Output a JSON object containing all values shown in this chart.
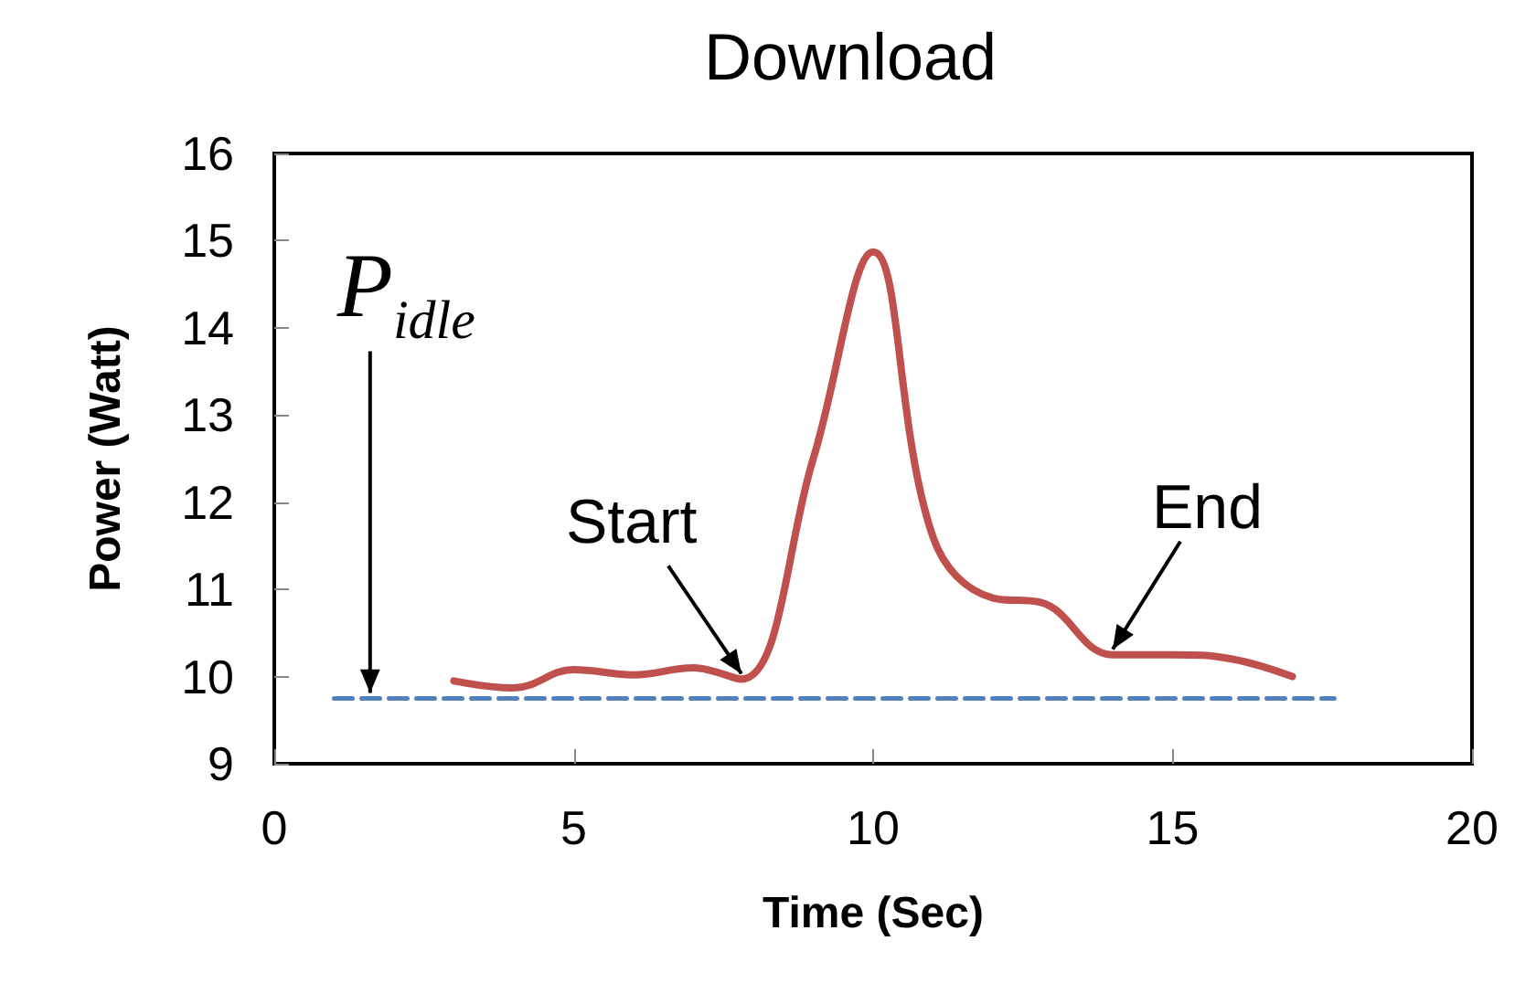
{
  "chart_data": {
    "type": "line",
    "title": "Download",
    "xlabel": "Time (Sec)",
    "ylabel": "Power (Watt)",
    "series": [
      {
        "color": "#c0504d",
        "x": [
          3,
          4,
          5,
          6,
          7,
          7.8,
          9,
          10,
          11,
          12,
          12.8,
          14,
          15,
          16,
          17
        ],
        "values": [
          9.95,
          9.87,
          10.08,
          10.02,
          10.1,
          9.97,
          12.5,
          14.87,
          11.6,
          10.9,
          10.85,
          10.25,
          10.25,
          10.2,
          10.0
        ],
        "line_style": "solid"
      },
      {
        "color": "#4f81bd",
        "x": [
          1,
          17.7
        ],
        "values": [
          9.75,
          9.75
        ],
        "line_style": "dashed"
      }
    ],
    "annotations": [
      {
        "text": "P$_{idle}$",
        "x": 1.6,
        "y": 9.75
      },
      {
        "text": "Start",
        "x": 7.8,
        "y": 9.97
      },
      {
        "text": "End",
        "x": 14,
        "y": 10.25
      }
    ],
    "xlim": [
      0,
      20
    ],
    "xticks": [
      0,
      5,
      10,
      15,
      20
    ],
    "ylim": [
      9,
      16
    ],
    "yticks": [
      9,
      10,
      11,
      12,
      13,
      14,
      15,
      16
    ],
    "marker": "none"
  }
}
